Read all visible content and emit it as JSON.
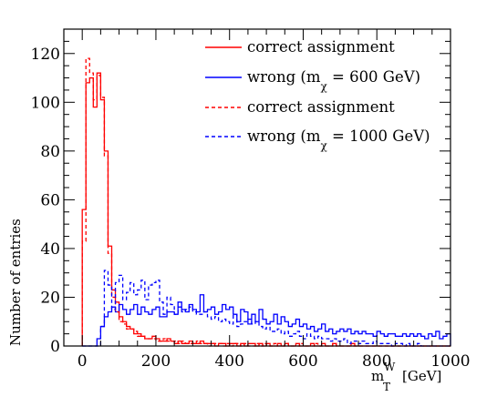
{
  "chart_data": {
    "type": "histogram",
    "title": "",
    "xlabel": {
      "main": "m",
      "superscript": "W",
      "subscript": "T",
      "unit": "[GeV]"
    },
    "ylabel": "Number of entries",
    "xlim": [
      -50,
      1000
    ],
    "ylim": [
      0,
      130
    ],
    "bin_width": 10,
    "xticks": [
      0,
      200,
      400,
      600,
      800,
      1000
    ],
    "xtick_labels": [
      "0",
      "200",
      "400",
      "600",
      "800",
      "1000"
    ],
    "yticks": [
      0,
      20,
      40,
      60,
      80,
      100,
      120
    ],
    "ytick_labels": [
      "0",
      "20",
      "40",
      "60",
      "80",
      "100",
      "120"
    ],
    "grid": false,
    "legend_position": "top-right",
    "legend": [
      {
        "text": "correct assignment",
        "style": "solid",
        "color": "#ff0000"
      },
      {
        "text_main": "wrong  (m",
        "text_sub": "χ",
        "text_tail": " = 600 GeV)",
        "style": "solid",
        "color": "#0000ff"
      },
      {
        "text": "correct assignment",
        "style": "dashed",
        "color": "#ff0000"
      },
      {
        "text_main": "wrong (m",
        "text_sub": "χ",
        "text_tail": " = 1000 GeV)",
        "style": "dashed",
        "color": "#0000ff"
      }
    ],
    "series": [
      {
        "line": "solid",
        "color": "#ff0000",
        "x_start": 0,
        "values": [
          56,
          108,
          110,
          98,
          112,
          101,
          80,
          41,
          23,
          18,
          12,
          10,
          8,
          7,
          5,
          5,
          4,
          3,
          3,
          4,
          3,
          2,
          2,
          3,
          2,
          1,
          2,
          1,
          1,
          2,
          1,
          1,
          2,
          1,
          1,
          1,
          0,
          1,
          1,
          0,
          1,
          1,
          0,
          1,
          0,
          1,
          1,
          0,
          1,
          0,
          1,
          0,
          0,
          1,
          0,
          1,
          0,
          0,
          1,
          0,
          0,
          0,
          1,
          0,
          0,
          1,
          0,
          0,
          1,
          0,
          0,
          0,
          0,
          1,
          0,
          0,
          0,
          0,
          0,
          0,
          0,
          0,
          0,
          0,
          0,
          0,
          0,
          0,
          0,
          0,
          0,
          0,
          0,
          0,
          0,
          0,
          0,
          0,
          0,
          0
        ]
      },
      {
        "line": "solid",
        "color": "#0000ff",
        "x_start": 0,
        "values": [
          0,
          0,
          0,
          0,
          3,
          8,
          12,
          14,
          16,
          14,
          17,
          15,
          13,
          15,
          17,
          13,
          16,
          14,
          13,
          15,
          16,
          12,
          12,
          14,
          14,
          13,
          18,
          15,
          14,
          17,
          15,
          14,
          21,
          14,
          15,
          16,
          13,
          14,
          17,
          15,
          16,
          13,
          10,
          15,
          14,
          9,
          13,
          10,
          15,
          11,
          9,
          10,
          13,
          9,
          12,
          10,
          8,
          9,
          11,
          8,
          9,
          7,
          8,
          6,
          7,
          9,
          6,
          7,
          5,
          6,
          7,
          6,
          7,
          5,
          6,
          5,
          6,
          5,
          5,
          4,
          6,
          5,
          4,
          5,
          5,
          4,
          4,
          5,
          4,
          5,
          4,
          5,
          4,
          3,
          5,
          4,
          6,
          3,
          4,
          5
        ]
      },
      {
        "line": "dashed",
        "color": "#ff0000",
        "x_start": 0,
        "values": [
          43,
          118,
          112,
          101,
          111,
          102,
          78,
          38,
          20,
          14,
          10,
          9,
          7,
          7,
          6,
          4,
          4,
          3,
          3,
          3,
          2,
          2,
          3,
          2,
          2,
          2,
          1,
          2,
          1,
          1,
          1,
          2,
          1,
          1,
          0,
          1,
          1,
          1,
          0,
          1,
          0,
          1,
          1,
          0,
          1,
          0,
          0,
          1,
          0,
          1,
          0,
          0,
          1,
          0,
          0,
          1,
          0,
          0,
          0,
          1,
          0,
          0,
          0,
          1,
          0,
          0,
          0,
          0,
          1,
          0,
          0,
          0,
          0,
          0,
          0,
          0,
          0,
          0,
          0,
          0,
          0,
          0,
          0,
          0,
          0,
          0,
          0,
          0,
          0,
          0,
          0,
          0,
          0,
          0,
          0,
          0,
          0,
          0,
          0,
          0
        ]
      },
      {
        "line": "dashed",
        "color": "#0000ff",
        "x_start": 0,
        "values": [
          0,
          0,
          0,
          0,
          0,
          8,
          31,
          25,
          15,
          26,
          29,
          19,
          22,
          26,
          21,
          23,
          27,
          19,
          25,
          26,
          27,
          18,
          13,
          20,
          17,
          13,
          16,
          14,
          15,
          16,
          14,
          13,
          13,
          14,
          12,
          11,
          12,
          10,
          11,
          10,
          9,
          13,
          8,
          9,
          10,
          11,
          9,
          10,
          8,
          7,
          9,
          6,
          6,
          7,
          5,
          6,
          4,
          5,
          6,
          4,
          3,
          5,
          4,
          3,
          4,
          3,
          3,
          2,
          3,
          2,
          2,
          3,
          1,
          2,
          2,
          1,
          2,
          1,
          1,
          2,
          1,
          1,
          1,
          1,
          0,
          1,
          1,
          0,
          1,
          0,
          0,
          1,
          0,
          0,
          0,
          0,
          0,
          0,
          0,
          0
        ]
      }
    ]
  }
}
